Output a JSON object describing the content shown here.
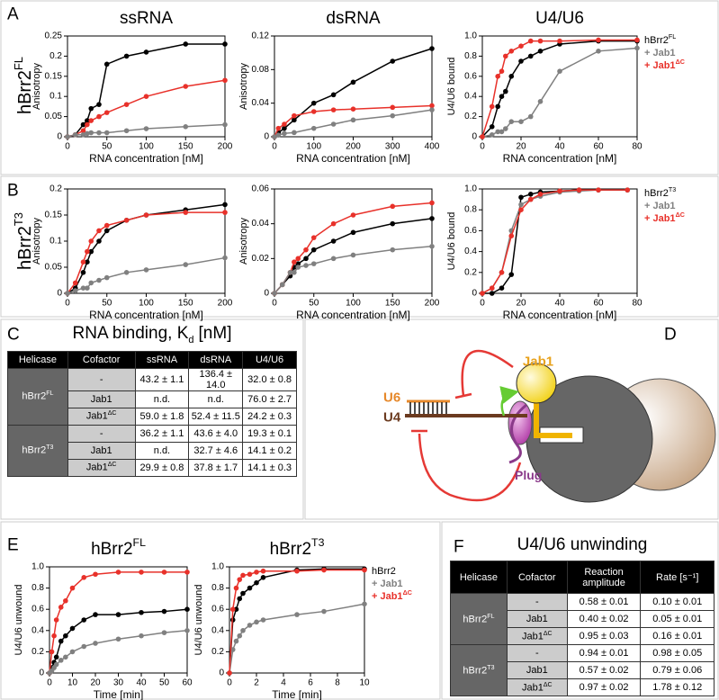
{
  "panel_labels": [
    "A",
    "B",
    "C",
    "D",
    "E",
    "F"
  ],
  "row_labels": [
    {
      "text": "hBrr2",
      "sup": "FL"
    },
    {
      "text": "hBrr2",
      "sup": "T3"
    }
  ],
  "chart_data": [
    {
      "type": "line",
      "title": "ssRNA",
      "xlabel": "RNA concentration [nM]",
      "ylabel": "Anisotropy",
      "xlim": [
        0,
        200
      ],
      "xticks": [
        0,
        50,
        100,
        150,
        200
      ],
      "ylim": [
        0,
        0.25
      ],
      "yticks": [
        0,
        0.05,
        0.1,
        0.15,
        0.2,
        0.25
      ],
      "x": [
        0,
        10,
        20,
        25,
        30,
        40,
        50,
        75,
        100,
        150,
        200
      ],
      "series": [
        {
          "color": "#000000",
          "values": [
            0,
            0.005,
            0.03,
            0.04,
            0.07,
            0.08,
            0.18,
            0.2,
            0.21,
            0.23,
            0.23
          ]
        },
        {
          "color": "#e8312a",
          "values": [
            0,
            0.005,
            0.015,
            0.03,
            0.04,
            0.05,
            0.06,
            0.08,
            0.1,
            0.125,
            0.14
          ]
        },
        {
          "color": "#808080",
          "values": [
            0,
            0.005,
            0.005,
            0.008,
            0.01,
            0.01,
            0.01,
            0.015,
            0.02,
            0.025,
            0.03
          ]
        }
      ]
    },
    {
      "type": "line",
      "title": "dsRNA",
      "xlabel": "RNA concentration [nM]",
      "ylabel": "Anisotropy",
      "xlim": [
        0,
        400
      ],
      "xticks": [
        0,
        100,
        200,
        300,
        400
      ],
      "ylim": [
        0,
        0.12
      ],
      "yticks": [
        0,
        0.04,
        0.08,
        0.12
      ],
      "x": [
        0,
        10,
        25,
        50,
        100,
        150,
        200,
        300,
        400
      ],
      "series": [
        {
          "color": "#000000",
          "values": [
            0,
            0.005,
            0.01,
            0.02,
            0.04,
            0.05,
            0.065,
            0.09,
            0.105
          ]
        },
        {
          "color": "#e8312a",
          "values": [
            0,
            0.01,
            0.015,
            0.025,
            0.03,
            0.032,
            0.033,
            0.035,
            0.037
          ]
        },
        {
          "color": "#808080",
          "values": [
            0,
            0.002,
            0.004,
            0.005,
            0.01,
            0.015,
            0.02,
            0.025,
            0.032
          ]
        }
      ]
    },
    {
      "type": "line",
      "title": "U4/U6",
      "xlabel": "RNA concentration [nM]",
      "ylabel": "U4/U6 bound",
      "xlim": [
        0,
        80
      ],
      "xticks": [
        0,
        20,
        40,
        60,
        80
      ],
      "ylim": [
        0,
        1
      ],
      "yticks": [
        0,
        0.2,
        0.4,
        0.6,
        0.8,
        {
          "value": 1,
          "label": "1.0"
        }
      ],
      "x": [
        0,
        5,
        8,
        10,
        12,
        15,
        20,
        25,
        30,
        40,
        60,
        80
      ],
      "series": [
        {
          "name": "hBrr2",
          "name_sup": "FL",
          "color": "#000000",
          "values": [
            0,
            0.1,
            0.3,
            0.4,
            0.45,
            0.6,
            0.75,
            0.8,
            0.85,
            0.92,
            0.95,
            0.95
          ]
        },
        {
          "name": "+ Jab1",
          "color": "#808080",
          "values": [
            0,
            0.02,
            0.05,
            0.05,
            0.08,
            0.15,
            0.15,
            0.2,
            0.35,
            0.65,
            0.85,
            0.88
          ]
        },
        {
          "name": "+ Jab1",
          "name_sup": "ΔC",
          "color": "#e8312a",
          "values": [
            0,
            0.3,
            0.6,
            0.65,
            0.8,
            0.85,
            0.9,
            0.95,
            0.95,
            0.95,
            0.96,
            0.96
          ]
        }
      ]
    },
    {
      "type": "line",
      "xlabel": "RNA concentration [nM]",
      "ylabel": "Anisotropy",
      "xlim": [
        0,
        200
      ],
      "xticks": [
        0,
        50,
        100,
        150,
        200
      ],
      "ylim": [
        0,
        0.2
      ],
      "yticks": [
        0,
        0.05,
        0.1,
        0.15,
        0.2
      ],
      "x": [
        0,
        10,
        20,
        25,
        30,
        40,
        50,
        75,
        100,
        150,
        200
      ],
      "series": [
        {
          "color": "#000000",
          "values": [
            0,
            0.01,
            0.04,
            0.06,
            0.08,
            0.1,
            0.12,
            0.14,
            0.15,
            0.16,
            0.17
          ]
        },
        {
          "color": "#e8312a",
          "values": [
            0,
            0.02,
            0.06,
            0.08,
            0.1,
            0.12,
            0.13,
            0.14,
            0.15,
            0.155,
            0.155
          ]
        },
        {
          "color": "#808080",
          "values": [
            0,
            0.005,
            0.01,
            0.01,
            0.02,
            0.025,
            0.03,
            0.04,
            0.045,
            0.055,
            0.068
          ]
        }
      ]
    },
    {
      "type": "line",
      "xlabel": "RNA concentration [nM]",
      "ylabel": "Anisotropy",
      "xlim": [
        0,
        200
      ],
      "xticks": [
        0,
        50,
        100,
        150,
        200
      ],
      "ylim": [
        0,
        0.06
      ],
      "yticks": [
        0,
        0.02,
        0.04,
        0.06
      ],
      "x": [
        0,
        10,
        20,
        25,
        30,
        40,
        50,
        75,
        100,
        150,
        200
      ],
      "series": [
        {
          "color": "#000000",
          "values": [
            0,
            0.005,
            0.01,
            0.015,
            0.017,
            0.02,
            0.025,
            0.03,
            0.035,
            0.04,
            0.043
          ]
        },
        {
          "color": "#e8312a",
          "values": [
            0,
            0.005,
            0.012,
            0.018,
            0.02,
            0.025,
            0.032,
            0.04,
            0.045,
            0.05,
            0.052
          ]
        },
        {
          "color": "#808080",
          "values": [
            0,
            0.005,
            0.012,
            0.012,
            0.015,
            0.016,
            0.017,
            0.02,
            0.022,
            0.025,
            0.027
          ]
        }
      ]
    },
    {
      "type": "line",
      "xlabel": "RNA concentration [nM]",
      "ylabel": "U4/U6 bound",
      "xlim": [
        0,
        80
      ],
      "xticks": [
        0,
        20,
        40,
        60,
        80
      ],
      "ylim": [
        0,
        1
      ],
      "yticks": [
        0,
        0.2,
        0.4,
        0.6,
        0.8,
        {
          "value": 1,
          "label": "1.0"
        }
      ],
      "x": [
        0,
        5,
        10,
        15,
        20,
        25,
        30,
        40,
        50,
        60,
        75
      ],
      "series": [
        {
          "name": "hBrr2",
          "name_sup": "T3",
          "color": "#000000",
          "values": [
            0,
            0,
            0.05,
            0.18,
            0.92,
            0.95,
            0.97,
            0.98,
            0.99,
            0.99,
            0.99
          ]
        },
        {
          "name": "+ Jab1",
          "color": "#808080",
          "values": [
            0,
            0.05,
            0.2,
            0.6,
            0.85,
            0.9,
            0.93,
            0.97,
            0.98,
            0.99,
            0.99
          ]
        },
        {
          "name": "+ Jab1",
          "name_sup": "ΔC",
          "color": "#e8312a",
          "values": [
            0,
            0.05,
            0.2,
            0.55,
            0.8,
            0.9,
            0.95,
            0.98,
            0.99,
            0.99,
            0.99
          ]
        }
      ]
    },
    {
      "type": "line",
      "title": "hBrr2",
      "title_sup": "FL",
      "xlabel": "Time [min]",
      "ylabel": "U4/U6 unwound",
      "xlim": [
        0,
        60
      ],
      "xticks": [
        0,
        10,
        20,
        30,
        40,
        50,
        60
      ],
      "ylim": [
        0,
        1
      ],
      "yticks": [
        0,
        0.2,
        0.4,
        0.6,
        0.8,
        {
          "value": 1,
          "label": "1.0"
        }
      ],
      "x": [
        0,
        1,
        2,
        3,
        5,
        7,
        10,
        15,
        20,
        30,
        40,
        50,
        60
      ],
      "series": [
        {
          "color": "#000000",
          "values": [
            0,
            0.05,
            0.1,
            0.15,
            0.3,
            0.35,
            0.42,
            0.5,
            0.55,
            0.55,
            0.57,
            0.58,
            0.6
          ]
        },
        {
          "color": "#e8312a",
          "values": [
            0,
            0.2,
            0.35,
            0.5,
            0.62,
            0.68,
            0.8,
            0.9,
            0.93,
            0.95,
            0.95,
            0.95,
            0.95
          ]
        },
        {
          "color": "#808080",
          "values": [
            0,
            0.02,
            0.05,
            0.08,
            0.12,
            0.15,
            0.2,
            0.25,
            0.28,
            0.32,
            0.35,
            0.38,
            0.4
          ]
        }
      ]
    },
    {
      "type": "line",
      "title": "hBrr2",
      "title_sup": "T3",
      "xlabel": "Time [min]",
      "ylabel": "U4/U6 unwound",
      "xlim": [
        0,
        10
      ],
      "xticks": [
        0,
        2,
        4,
        6,
        8,
        10
      ],
      "ylim": [
        0,
        1
      ],
      "yticks": [
        0,
        0.2,
        0.4,
        0.6,
        0.8,
        {
          "value": 1,
          "label": "1.0"
        }
      ],
      "x": [
        0,
        0.25,
        0.5,
        0.75,
        1,
        1.5,
        2,
        2.5,
        5,
        7,
        10
      ],
      "series": [
        {
          "name": "hBrr2",
          "color": "#000000",
          "values": [
            0,
            0.5,
            0.6,
            0.7,
            0.75,
            0.8,
            0.85,
            0.9,
            0.97,
            0.98,
            0.98
          ]
        },
        {
          "name": "+ Jab1",
          "color": "#808080",
          "values": [
            0,
            0.22,
            0.3,
            0.35,
            0.4,
            0.45,
            0.48,
            0.5,
            0.55,
            0.58,
            0.65
          ]
        },
        {
          "name": "+ Jab1",
          "name_sup": "ΔC",
          "color": "#e8312a",
          "values": [
            0,
            0.6,
            0.8,
            0.88,
            0.92,
            0.93,
            0.95,
            0.96,
            0.96,
            0.97,
            0.97
          ]
        }
      ]
    }
  ],
  "table_c": {
    "title": "RNA binding, K",
    "title_sub": "d",
    "title_suffix": "[nM]",
    "headers": [
      "Helicase",
      "Cofactor",
      "ssRNA",
      "dsRNA",
      "U4/U6"
    ],
    "groups": [
      {
        "helicase": "hBrr2",
        "sup": "FL",
        "rows": [
          {
            "cofactor": "-",
            "cells": [
              "43.2 ± 1.1",
              "136.4 ± 14.0",
              "32.0 ± 0.8"
            ]
          },
          {
            "cofactor": "Jab1",
            "cells": [
              "n.d.",
              "n.d.",
              "76.0 ± 2.7"
            ]
          },
          {
            "cofactor": "Jab1",
            "sup": "ΔC",
            "cells": [
              "59.0 ± 1.8",
              "52.4 ± 11.5",
              "24.2 ± 0.3"
            ]
          }
        ]
      },
      {
        "helicase": "hBrr2",
        "sup": "T3",
        "rows": [
          {
            "cofactor": "-",
            "cells": [
              "36.2 ± 1.1",
              "43.6 ± 4.0",
              "19.3 ± 0.1"
            ]
          },
          {
            "cofactor": "Jab1",
            "cells": [
              "n.d.",
              "32.7 ± 4.6",
              "14.1 ± 0.2"
            ]
          },
          {
            "cofactor": "Jab1",
            "sup": "ΔC",
            "cells": [
              "29.9 ± 0.8",
              "37.8 ± 1.7",
              "14.1 ± 0.3"
            ]
          }
        ]
      }
    ]
  },
  "diagram": {
    "jab1": "Jab1",
    "u6": "U6",
    "u4": "U4",
    "plug": "Plug"
  },
  "table_f": {
    "title": "U4/U6 unwinding",
    "headers": [
      "Helicase",
      "Cofactor",
      "Reaction amplitude",
      "Rate [s⁻¹]"
    ],
    "groups": [
      {
        "helicase": "hBrr2",
        "sup": "FL",
        "rows": [
          {
            "cofactor": "-",
            "cells": [
              "0.58 ± 0.01",
              "0.10 ± 0.01"
            ]
          },
          {
            "cofactor": "Jab1",
            "cells": [
              "0.40 ± 0.02",
              "0.05 ± 0.01"
            ]
          },
          {
            "cofactor": "Jab1",
            "sup": "ΔC",
            "cells": [
              "0.95 ± 0.03",
              "0.16 ± 0.01"
            ]
          }
        ]
      },
      {
        "helicase": "hBrr2",
        "sup": "T3",
        "rows": [
          {
            "cofactor": "-",
            "cells": [
              "0.94 ± 0.01",
              "0.98 ± 0.05"
            ]
          },
          {
            "cofactor": "Jab1",
            "cells": [
              "0.57 ± 0.02",
              "0.79 ± 0.06"
            ]
          },
          {
            "cofactor": "Jab1",
            "sup": "ΔC",
            "cells": [
              "0.97 ± 0.02",
              "1.78 ± 0.12"
            ]
          }
        ]
      }
    ]
  }
}
